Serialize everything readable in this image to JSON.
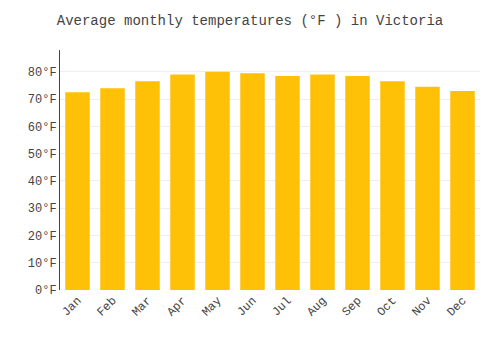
{
  "chart_data": {
    "type": "bar",
    "title": "Average monthly temperatures (°F ) in Victoria",
    "categories": [
      "Jan",
      "Feb",
      "Mar",
      "Apr",
      "May",
      "Jun",
      "Jul",
      "Aug",
      "Sep",
      "Oct",
      "Nov",
      "Dec"
    ],
    "values": [
      72.5,
      74.0,
      76.5,
      79.0,
      80.0,
      79.5,
      78.5,
      79.0,
      78.5,
      76.5,
      74.5,
      73.0
    ],
    "color": "#FFC107",
    "ylim": [
      0,
      88
    ],
    "yticks": [
      {
        "value": 0,
        "label": "0°F"
      },
      {
        "value": 10,
        "label": "10°F"
      },
      {
        "value": 20,
        "label": "20°F"
      },
      {
        "value": 30,
        "label": "30°F"
      },
      {
        "value": 40,
        "label": "40°F"
      },
      {
        "value": 50,
        "label": "50°F"
      },
      {
        "value": 60,
        "label": "60°F"
      },
      {
        "value": 70,
        "label": "70°F"
      },
      {
        "value": 80,
        "label": "80°F"
      }
    ],
    "grid": true
  }
}
